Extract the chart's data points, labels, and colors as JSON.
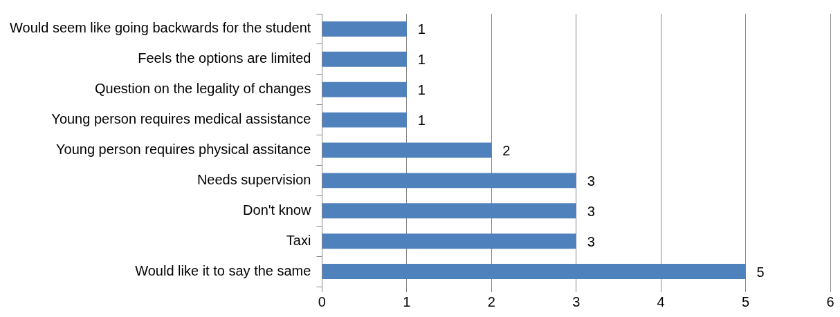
{
  "chart_data": {
    "type": "bar",
    "orientation": "horizontal",
    "categories": [
      "Would seem like going backwards for the student",
      "Feels the options are limited",
      "Question on the legality of changes",
      "Young person requires medical assistance",
      "Young person requires physical assitance",
      "Needs supervision",
      "Don't know",
      "Taxi",
      "Would like it to say the same"
    ],
    "values": [
      1,
      1,
      1,
      1,
      2,
      3,
      3,
      3,
      5
    ],
    "color": "#4f81bd",
    "xlim": [
      0,
      6
    ],
    "xticks": [
      0,
      1,
      2,
      3,
      4,
      5,
      6
    ],
    "grid": "x",
    "data_labels": true,
    "legend": false
  }
}
